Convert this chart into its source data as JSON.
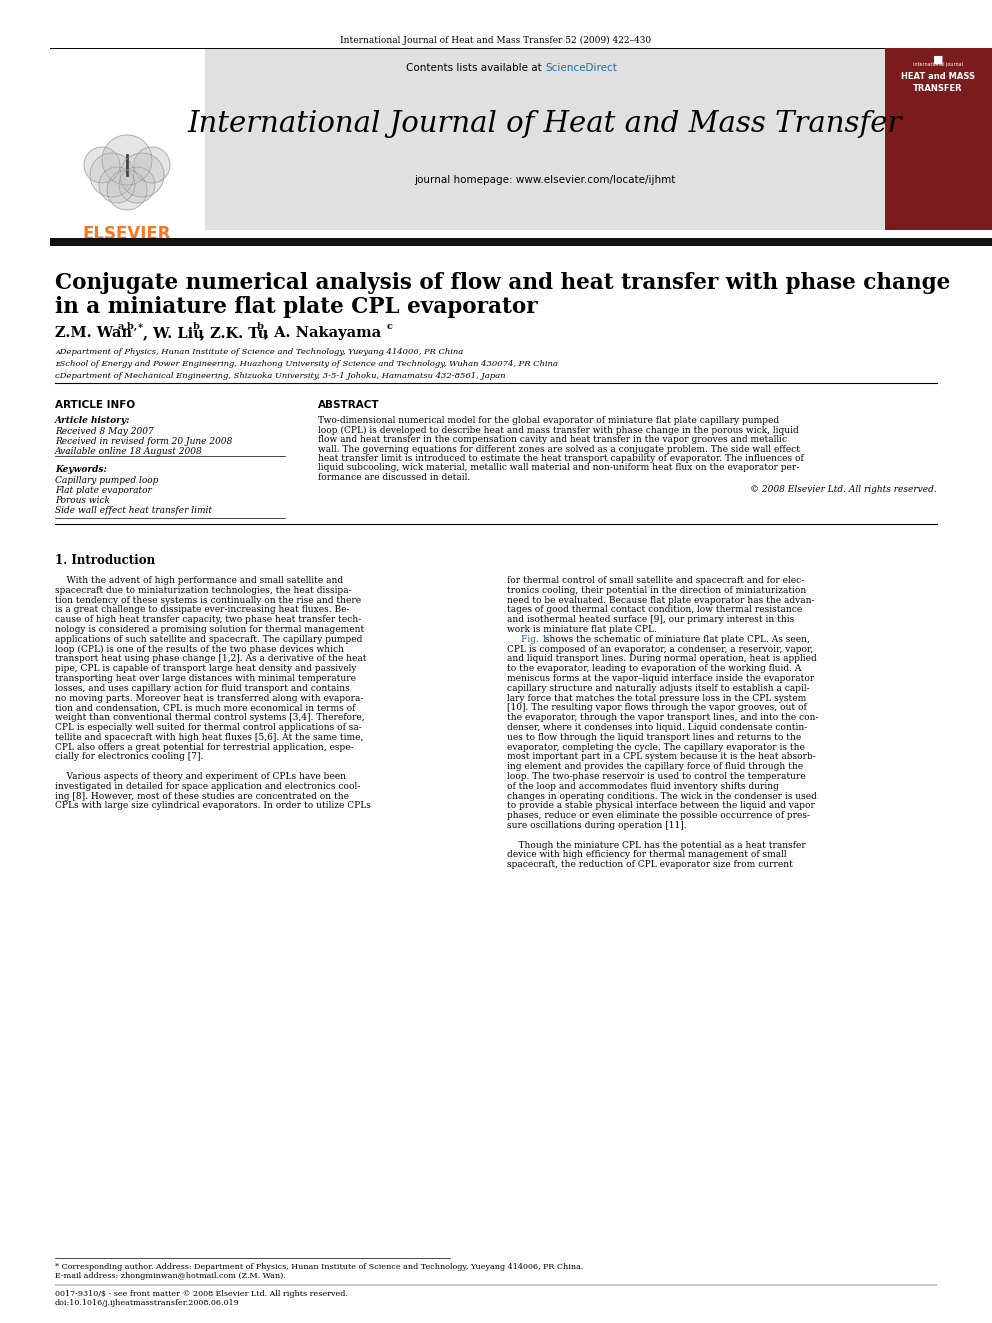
{
  "page_bg": "#ffffff",
  "top_citation": "International Journal of Heat and Mass Transfer 52 (2009) 422–430",
  "journal_title": "International Journal of Heat and Mass Transfer",
  "homepage_text": "journal homepage: www.elsevier.com/locate/ijhmt",
  "paper_title_line1": "Conjugate numerical analysis of flow and heat transfer with phase change",
  "paper_title_line2": "in a miniature flat plate CPL evaporator",
  "affil_a": "ᴀDepartment of Physics, Hunan Institute of Science and Technology, Yueyang 414006, PR China",
  "affil_b": "ᴇSchool of Energy and Power Engineering, Huazhong University of Science and Technology, Wuhan 430074, PR China",
  "affil_c": "ᴄDepartment of Mechanical Engineering, Shizuoka University, 3-5-1 Johoku, Hamamatsu 432-8561, Japan",
  "article_info_title": "ARTICLE INFO",
  "article_history_title": "Article history:",
  "received1": "Received 8 May 2007",
  "received2": "Received in revised form 20 June 2008",
  "available": "Available online 18 August 2008",
  "keywords_title": "Keywords:",
  "kw1": "Capillary pumped loop",
  "kw2": "Flat plate evaporator",
  "kw3": "Porous wick",
  "kw4": "Side wall effect heat transfer limit",
  "abstract_title": "ABSTRACT",
  "copyright": "© 2008 Elsevier Ltd. All rights reserved.",
  "section1_title": "1. Introduction",
  "footer_note1": "* Corresponding author. Address: Department of Physics, Hunan Institute of Science and Technology, Yueyang 414006, PR China.",
  "footer_note2": "E-mail address: zhongminwan@hotmail.com (Z.M. Wan).",
  "footer_issn": "0017-9310/$ - see front matter © 2008 Elsevier Ltd. All rights reserved.",
  "footer_doi": "doi:10.1016/j.ijheatmasstransfer.2008.06.019",
  "header_bg": "#e0e0e0",
  "black_bar_color": "#111111",
  "red_book_color": "#7a1c1c",
  "elsevier_orange": "#f47920",
  "sd_blue": "#1a6fa8",
  "fig1_blue": "#1a5fa0",
  "ref_blue": "#1a5fa0",
  "abstract_lines": [
    "Two-dimensional numerical model for the global evaporator of miniature flat plate capillary pumped",
    "loop (CPL) is developed to describe heat and mass transfer with phase change in the porous wick, liquid",
    "flow and heat transfer in the compensation cavity and heat transfer in the vapor grooves and metallic",
    "wall. The governing equations for different zones are solved as a conjugate problem. The side wall effect",
    "heat transfer limit is introduced to estimate the heat transport capability of evaporator. The influences of",
    "liquid subcooling, wick material, metallic wall material and non-uniform heat flux on the evaporator per-",
    "formance are discussed in detail."
  ],
  "intro_left_lines": [
    "    With the advent of high performance and small satellite and",
    "spacecraft due to miniaturization technologies, the heat dissipa-",
    "tion tendency of these systems is continually on the rise and there",
    "is a great challenge to dissipate ever-increasing heat fluxes. Be-",
    "cause of high heat transfer capacity, two phase heat transfer tech-",
    "nology is considered a promising solution for thermal management",
    "applications of such satellite and spacecraft. The capillary pumped",
    "loop (CPL) is one of the results of the two phase devices which",
    "transport heat using phase change [1,2]. As a derivative of the heat",
    "pipe, CPL is capable of transport large heat density and passively",
    "transporting heat over large distances with minimal temperature",
    "losses, and uses capillary action for fluid transport and contains",
    "no moving parts. Moreover heat is transferred along with evapora-",
    "tion and condensation, CPL is much more economical in terms of",
    "weight than conventional thermal control systems [3,4]. Therefore,",
    "CPL is especially well suited for thermal control applications of sa-",
    "tellite and spacecraft with high heat fluxes [5,6]. At the same time,",
    "CPL also offers a great potential for terrestrial application, espe-",
    "cially for electronics cooling [7].",
    "",
    "    Various aspects of theory and experiment of CPLs have been",
    "investigated in detailed for space application and electronics cool-",
    "ing [8]. However, most of these studies are concentrated on the",
    "CPLs with large size cylindrical evaporators. In order to utilize CPLs"
  ],
  "intro_right_lines": [
    "for thermal control of small satellite and spacecraft and for elec-",
    "tronics cooling, their potential in the direction of miniaturization",
    "need to be evaluated. Because flat plate evaporator has the advan-",
    "tages of good thermal contact condition, low thermal resistance",
    "and isothermal heated surface [9], our primary interest in this",
    "work is miniature flat plate CPL.",
    "    ~Fig. 1~ shows the schematic of miniature flat plate CPL. As seen,",
    "CPL is composed of an evaporator, a condenser, a reservoir, vapor,",
    "and liquid transport lines. During normal operation, heat is applied",
    "to the evaporator, leading to evaporation of the working fluid. A",
    "meniscus forms at the vapor–liquid interface inside the evaporator",
    "capillary structure and naturally adjusts itself to establish a capil-",
    "lary force that matches the total pressure loss in the CPL system",
    "[10]. The resulting vapor flows through the vapor grooves, out of",
    "the evaporator, through the vapor transport lines, and into the con-",
    "denser, where it condenses into liquid. Liquid condensate contin-",
    "ues to flow through the liquid transport lines and returns to the",
    "evaporator, completing the cycle. The capillary evaporator is the",
    "most important part in a CPL system because it is the heat absorb-",
    "ing element and provides the capillary force of fluid through the",
    "loop. The two-phase reservoir is used to control the temperature",
    "of the loop and accommodates fluid inventory shifts during",
    "changes in operating conditions. The wick in the condenser is used",
    "to provide a stable physical interface between the liquid and vapor",
    "phases, reduce or even eliminate the possible occurrence of pres-",
    "sure oscillations during operation [11].",
    "",
    "    Though the miniature CPL has the potential as a heat transfer",
    "device with high efficiency for thermal management of small",
    "spacecraft, the reduction of CPL evaporator size from current"
  ]
}
